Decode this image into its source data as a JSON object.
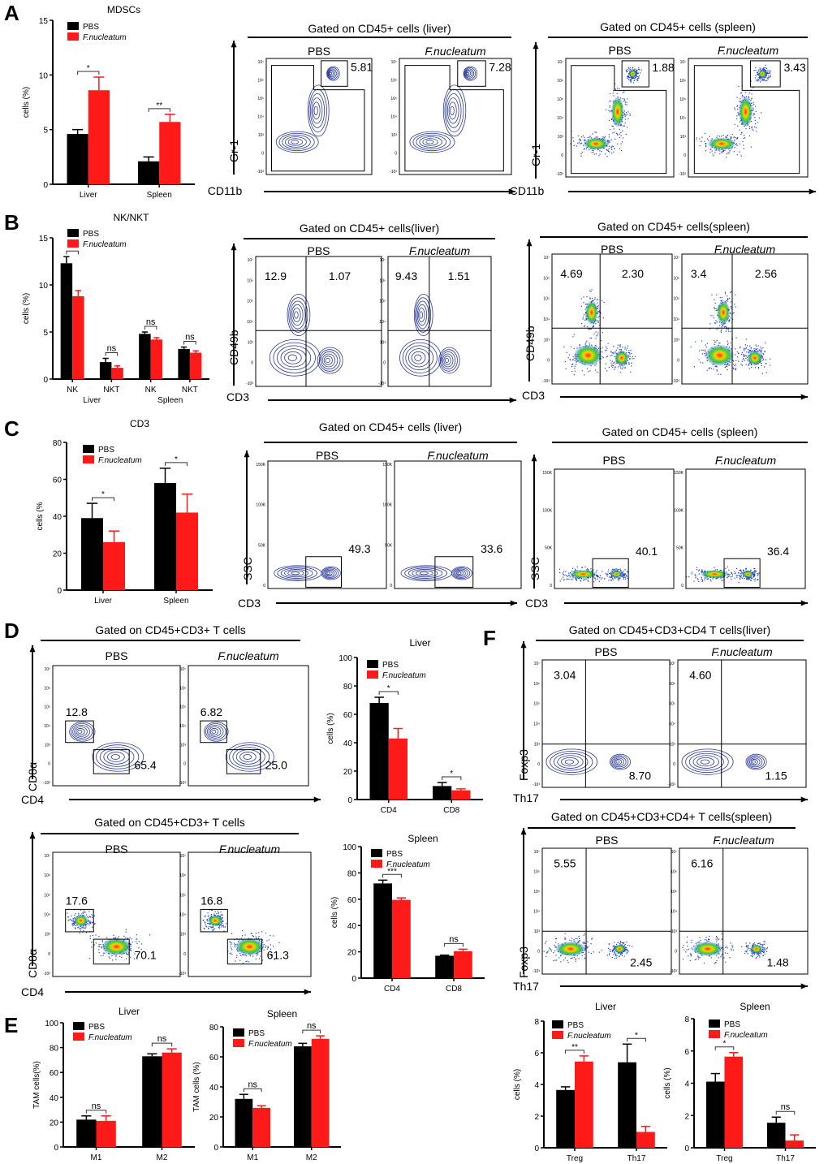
{
  "panel_letters": [
    "A",
    "B",
    "C",
    "D",
    "E",
    "F"
  ],
  "legend": {
    "pbs": "PBS",
    "fn": "F.nucleatum"
  },
  "colors": {
    "pbs": "#000000",
    "fn": "#ff1a1a",
    "contour": "#2b3a9a",
    "dots": "#1f3fd0"
  },
  "flow_ticks_log": [
    "10⁷",
    "10⁶",
    "10⁵",
    "10⁴",
    "10³",
    "0",
    "-10³"
  ],
  "flow_ticks_ssc": [
    "150K",
    "100K",
    "50K",
    "0"
  ],
  "chart_data": [
    {
      "type": "bar",
      "title": "MDSCs",
      "ylabel": "cells (%)",
      "ylim": [
        0,
        15
      ],
      "yticks": [
        0,
        5,
        10,
        15
      ],
      "categories": [
        "Liver",
        "Spleen"
      ],
      "series": [
        {
          "name": "PBS",
          "values": [
            4.6,
            2.1
          ],
          "errors": [
            0.4,
            0.4
          ]
        },
        {
          "name": "F.nucleatum",
          "values": [
            8.6,
            5.7
          ],
          "errors": [
            1.2,
            0.7
          ]
        }
      ],
      "significance": [
        "*",
        "**"
      ]
    },
    {
      "type": "bar",
      "title": "NK/NKT",
      "ylabel": "cells (%)",
      "ylim": [
        0,
        15
      ],
      "yticks": [
        0,
        5,
        10,
        15
      ],
      "categories": [
        "NK",
        "NKT",
        "NK",
        "NKT"
      ],
      "group_labels": [
        "Liver",
        "Spleen"
      ],
      "series": [
        {
          "name": "PBS",
          "values": [
            12.3,
            1.8,
            4.8,
            3.2
          ],
          "errors": [
            0.7,
            0.4,
            0.2,
            0.2
          ]
        },
        {
          "name": "F.nucleatum",
          "values": [
            8.8,
            1.2,
            4.2,
            2.8
          ],
          "errors": [
            0.6,
            0.2,
            0.2,
            0.2
          ]
        }
      ],
      "significance": [
        "**",
        "ns",
        "ns",
        "ns"
      ]
    },
    {
      "type": "bar",
      "title": "CD3",
      "ylabel": "cells (%",
      "ylim": [
        0,
        80
      ],
      "yticks": [
        0,
        20,
        40,
        60,
        80
      ],
      "categories": [
        "Liver",
        "Spleen"
      ],
      "series": [
        {
          "name": "PBS",
          "values": [
            39,
            58
          ],
          "errors": [
            8,
            8
          ]
        },
        {
          "name": "F.nucleatum",
          "values": [
            26,
            42
          ],
          "errors": [
            6,
            10
          ]
        }
      ],
      "significance": [
        "*",
        "*"
      ]
    },
    {
      "type": "bar",
      "title": "Liver",
      "ylabel": "cells (%)",
      "ylim": [
        0,
        100
      ],
      "yticks": [
        0,
        20,
        40,
        60,
        80,
        100
      ],
      "categories": [
        "CD4",
        "CD8"
      ],
      "series": [
        {
          "name": "PBS",
          "values": [
            68,
            9.5
          ],
          "errors": [
            4,
            2.5
          ]
        },
        {
          "name": "F.nucleatum",
          "values": [
            43,
            6.5
          ],
          "errors": [
            7,
            1
          ]
        }
      ],
      "significance": [
        "*",
        "*"
      ]
    },
    {
      "type": "bar",
      "title": "Spleen",
      "ylabel": "cells (%)",
      "ylim": [
        0,
        100
      ],
      "yticks": [
        0,
        20,
        40,
        60,
        80,
        100
      ],
      "categories": [
        "CD4",
        "CD8"
      ],
      "series": [
        {
          "name": "PBS",
          "values": [
            72,
            17
          ],
          "errors": [
            2.5,
            0.5
          ]
        },
        {
          "name": "F.nucleatum",
          "values": [
            59.5,
            20.5
          ],
          "errors": [
            1.5,
            1.5
          ]
        }
      ],
      "significance": [
        "***",
        "ns"
      ]
    },
    {
      "type": "bar",
      "title": "Liver",
      "ylabel": "TAM cells(%)",
      "ylim": [
        0,
        100
      ],
      "yticks": [
        0,
        20,
        40,
        60,
        80,
        100
      ],
      "categories": [
        "M1",
        "M2"
      ],
      "series": [
        {
          "name": "PBS",
          "values": [
            22,
            73
          ],
          "errors": [
            3,
            2
          ]
        },
        {
          "name": "F.nucleatum",
          "values": [
            21,
            76
          ],
          "errors": [
            4,
            3
          ]
        }
      ],
      "significance": [
        "ns",
        "ns"
      ]
    },
    {
      "type": "bar",
      "title": "Spleen",
      "ylabel": "TAM cells (%)",
      "ylim": [
        0,
        80
      ],
      "yticks": [
        0,
        20,
        40,
        60,
        80
      ],
      "categories": [
        "M1",
        "M2"
      ],
      "series": [
        {
          "name": "PBS",
          "values": [
            32,
            67
          ],
          "errors": [
            3,
            2
          ]
        },
        {
          "name": "F.nucleatum",
          "values": [
            26,
            72
          ],
          "errors": [
            1.5,
            2
          ]
        }
      ],
      "significance": [
        "ns",
        "ns"
      ]
    },
    {
      "type": "bar",
      "title": "Liver",
      "ylabel": "cells (%)",
      "ylim": [
        0,
        8
      ],
      "yticks": [
        0,
        2,
        4,
        6,
        8
      ],
      "categories": [
        "Treg",
        "Th17"
      ],
      "series": [
        {
          "name": "PBS",
          "values": [
            3.65,
            5.4
          ],
          "errors": [
            0.2,
            1.15
          ]
        },
        {
          "name": "F.nucleatum",
          "values": [
            5.45,
            1.0
          ],
          "errors": [
            0.35,
            0.35
          ]
        }
      ],
      "significance": [
        "**",
        "*"
      ]
    },
    {
      "type": "bar",
      "title": "Spleen",
      "ylabel": "cells (%)",
      "ylim": [
        0,
        8
      ],
      "yticks": [
        0,
        2,
        4,
        6,
        8
      ],
      "categories": [
        "Treg",
        "Th17"
      ],
      "series": [
        {
          "name": "PBS",
          "values": [
            4.1,
            1.55
          ],
          "errors": [
            0.5,
            0.35
          ]
        },
        {
          "name": "F.nucleatum",
          "values": [
            5.65,
            0.45
          ],
          "errors": [
            0.25,
            0.35
          ]
        }
      ],
      "significance": [
        "*",
        "ns"
      ]
    }
  ],
  "flow_panels": [
    {
      "title": "Gated on CD45+ cells (liver)",
      "y_axis": "Gr-1",
      "x_axis": "CD11b",
      "style": "contour",
      "plots": [
        {
          "label": "PBS",
          "gates": [
            "5.81"
          ]
        },
        {
          "label": "F.nucleatum",
          "gates": [
            "7.28"
          ]
        }
      ]
    },
    {
      "title": "Gated on CD45+ cells (spleen)",
      "y_axis": "Gr-1",
      "x_axis": "CD11b",
      "style": "dot",
      "plots": [
        {
          "label": "PBS",
          "gates": [
            "1.88"
          ]
        },
        {
          "label": "F.nucleatum",
          "gates": [
            "3.43"
          ]
        }
      ]
    },
    {
      "title": "Gated on CD45+ cells(liver)",
      "y_axis": "CD49b",
      "x_axis": "CD3",
      "style": "contour",
      "plots": [
        {
          "label": "PBS",
          "gates": [
            "12.9",
            "1.07"
          ]
        },
        {
          "label": "F.nucleatum",
          "gates": [
            "9.43",
            "1.51"
          ]
        }
      ]
    },
    {
      "title": "Gated on CD45+ cells(spleen)",
      "y_axis": "CD49b",
      "x_axis": "CD3",
      "style": "dot",
      "plots": [
        {
          "label": "PBS",
          "gates": [
            "4.69",
            "2.30"
          ]
        },
        {
          "label": "F.nucleatum",
          "gates": [
            "3.4",
            "2.56"
          ]
        }
      ]
    },
    {
      "title": "Gated on CD45+ cells (liver)",
      "y_axis": "SSC",
      "x_axis": "CD3",
      "style": "contour",
      "plots": [
        {
          "label": "PBS",
          "gates": [
            "49.3"
          ]
        },
        {
          "label": "F.nucleatum",
          "gates": [
            "33.6"
          ]
        }
      ]
    },
    {
      "title": "Gated on CD45+ cells (spleen)",
      "y_axis": "SSC",
      "x_axis": "CD3",
      "style": "dot",
      "plots": [
        {
          "label": "PBS",
          "gates": [
            "40.1"
          ]
        },
        {
          "label": "F.nucleatum",
          "gates": [
            "36.4"
          ]
        }
      ]
    },
    {
      "title": "Gated on CD45+CD3+ T cells",
      "y_axis": "CD8α",
      "x_axis": "CD4",
      "style": "contour",
      "plots": [
        {
          "label": "PBS",
          "gates": [
            "12.8",
            "65.4"
          ]
        },
        {
          "label": "F.nucleatum",
          "gates": [
            "6.82",
            "25.0"
          ]
        }
      ]
    },
    {
      "title": "Gated on CD45+CD3+ T cells",
      "y_axis": "CD8α",
      "x_axis": "CD4",
      "style": "dot",
      "plots": [
        {
          "label": "PBS",
          "gates": [
            "17.6",
            "70.1"
          ]
        },
        {
          "label": "F.nucleatum",
          "gates": [
            "16.8",
            "61.3"
          ]
        }
      ]
    },
    {
      "title": "Gated on CD45+CD3+CD4  T cells(liver)",
      "y_axis": "Foxp3",
      "x_axis": "Th17",
      "style": "contour",
      "plots": [
        {
          "label": "PBS",
          "gates": [
            "3.04",
            "8.70"
          ]
        },
        {
          "label": "F.nucleatum",
          "gates": [
            "4.60",
            "1.15"
          ]
        }
      ]
    },
    {
      "title": "Gated on CD45+CD3+CD4+ T cells(spleen)",
      "y_axis": "Foxp3",
      "x_axis": "Th17",
      "style": "dot",
      "plots": [
        {
          "label": "PBS",
          "gates": [
            "5.55",
            "2.45"
          ]
        },
        {
          "label": "F.nucleatum",
          "gates": [
            "6.16",
            "1.48"
          ]
        }
      ]
    }
  ]
}
